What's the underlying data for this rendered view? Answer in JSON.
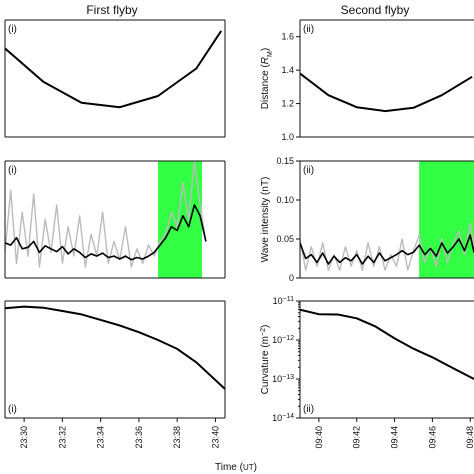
{
  "headers": {
    "left": "First flyby",
    "right": "Second flyby"
  },
  "chart_data": [
    {
      "id": "dist1",
      "type": "line",
      "panel_label": "(i)",
      "x": [
        23.29,
        23.31,
        23.33,
        23.35,
        23.37,
        23.39,
        23.403
      ],
      "series": [
        {
          "color": "#000000",
          "width": 2,
          "values": [
            1.53,
            1.33,
            1.205,
            1.178,
            1.245,
            1.41,
            1.635
          ]
        }
      ],
      "xlim": [
        23.29,
        23.405
      ],
      "ylim": [
        1.0,
        1.7
      ],
      "yticks": [],
      "xticks": []
    },
    {
      "id": "dist2",
      "type": "line",
      "panel_label": "(ii)",
      "ylabel_parts": [
        "Distance (",
        "R",
        "M",
        ")"
      ],
      "x": [
        9.39,
        9.405,
        9.42,
        9.435,
        9.45,
        9.465,
        9.481
      ],
      "series": [
        {
          "color": "#000000",
          "width": 2,
          "values": [
            1.38,
            1.25,
            1.178,
            1.155,
            1.175,
            1.25,
            1.36
          ]
        }
      ],
      "xlim": [
        9.39,
        9.482
      ],
      "ylim": [
        1.0,
        1.7
      ],
      "yticks": [
        1.0,
        1.2,
        1.4,
        1.6
      ],
      "ytick_labels": [
        "1.0",
        "1.2",
        "1.4",
        "1.6"
      ],
      "xticks": []
    },
    {
      "id": "wave1",
      "type": "line",
      "panel_label": "(i)",
      "shaded_region": {
        "from": 23.37,
        "to": 23.393,
        "color": "#33ff44"
      },
      "x": [
        23.29,
        23.293,
        23.296,
        23.299,
        23.302,
        23.305,
        23.308,
        23.311,
        23.314,
        23.317,
        23.32,
        23.323,
        23.326,
        23.329,
        23.332,
        23.335,
        23.338,
        23.341,
        23.344,
        23.347,
        23.35,
        23.353,
        23.356,
        23.359,
        23.362,
        23.365,
        23.368,
        23.371,
        23.374,
        23.377,
        23.38,
        23.383,
        23.386,
        23.389,
        23.392,
        23.395
      ],
      "series": [
        {
          "color": "#bbbbbb",
          "width": 1.4,
          "values": [
            0.035,
            0.12,
            0.02,
            0.09,
            0.03,
            0.115,
            0.015,
            0.08,
            0.035,
            0.1,
            0.02,
            0.07,
            0.03,
            0.085,
            0.015,
            0.06,
            0.03,
            0.09,
            0.02,
            0.05,
            0.025,
            0.07,
            0.015,
            0.04,
            0.02,
            0.045,
            0.03,
            0.05,
            0.06,
            0.09,
            0.07,
            0.13,
            0.08,
            0.16,
            0.1,
            0.05
          ]
        },
        {
          "color": "#000000",
          "width": 1.6,
          "values": [
            0.048,
            0.045,
            0.055,
            0.04,
            0.042,
            0.05,
            0.035,
            0.044,
            0.04,
            0.036,
            0.043,
            0.033,
            0.04,
            0.035,
            0.028,
            0.033,
            0.03,
            0.034,
            0.028,
            0.03,
            0.026,
            0.03,
            0.025,
            0.028,
            0.026,
            0.03,
            0.035,
            0.045,
            0.055,
            0.07,
            0.065,
            0.085,
            0.07,
            0.1,
            0.085,
            0.05
          ]
        }
      ],
      "xlim": [
        23.29,
        23.405
      ],
      "ylim": [
        0.0,
        0.16
      ],
      "yticks": [],
      "xticks": []
    },
    {
      "id": "wave2",
      "type": "line",
      "panel_label": "(ii)",
      "ylabel": "Wave intensity (nT)",
      "shaded_region": {
        "from": 9.453,
        "to": 9.482,
        "color": "#33ff44"
      },
      "x": [
        9.39,
        9.393,
        9.396,
        9.399,
        9.402,
        9.405,
        9.408,
        9.411,
        9.414,
        9.417,
        9.42,
        9.423,
        9.426,
        9.429,
        9.432,
        9.435,
        9.438,
        9.441,
        9.444,
        9.447,
        9.45,
        9.453,
        9.456,
        9.459,
        9.462,
        9.465,
        9.468,
        9.471,
        9.474,
        9.477,
        9.48,
        9.482
      ],
      "series": [
        {
          "color": "#bbbbbb",
          "width": 1.4,
          "values": [
            0.05,
            0.01,
            0.04,
            0.015,
            0.045,
            0.01,
            0.03,
            0.01,
            0.04,
            0.015,
            0.035,
            0.01,
            0.045,
            0.015,
            0.04,
            0.01,
            0.03,
            0.015,
            0.05,
            0.01,
            0.035,
            0.055,
            0.02,
            0.04,
            0.015,
            0.05,
            0.02,
            0.045,
            0.06,
            0.03,
            0.07,
            0.04
          ]
        },
        {
          "color": "#000000",
          "width": 1.6,
          "values": [
            0.045,
            0.025,
            0.03,
            0.02,
            0.032,
            0.018,
            0.028,
            0.02,
            0.026,
            0.022,
            0.03,
            0.018,
            0.028,
            0.02,
            0.032,
            0.022,
            0.026,
            0.03,
            0.035,
            0.03,
            0.033,
            0.042,
            0.03,
            0.038,
            0.028,
            0.045,
            0.032,
            0.04,
            0.05,
            0.035,
            0.055,
            0.033
          ]
        }
      ],
      "xlim": [
        9.39,
        9.482
      ],
      "ylim": [
        0.0,
        0.15
      ],
      "yticks": [
        0,
        0.05,
        0.1,
        0.15
      ],
      "ytick_labels": [
        "0",
        "0.05",
        "0.10",
        "0.15"
      ],
      "xticks": []
    },
    {
      "id": "curv1",
      "type": "line",
      "panel_label": "(i)",
      "xlabel_parts": [
        "Time (",
        "UT",
        ")"
      ],
      "x": [
        23.29,
        23.3,
        23.31,
        23.32,
        23.33,
        23.34,
        23.35,
        23.36,
        23.37,
        23.38,
        23.39,
        23.405
      ],
      "series": [
        {
          "color": "#000000",
          "width": 2,
          "values": [
            0.985,
            1.0,
            0.99,
            0.96,
            0.93,
            0.88,
            0.83,
            0.77,
            0.7,
            0.62,
            0.5,
            0.26
          ]
        }
      ],
      "xlim": [
        23.29,
        23.405
      ],
      "ylim": [
        0.0,
        1.05
      ],
      "yticks": [],
      "xticks": [
        23.3,
        23.32,
        23.34,
        23.36,
        23.38,
        23.4
      ],
      "xtick_labels": [
        "23:30",
        "23:32",
        "23:34",
        "23:36",
        "23:38",
        "23:40"
      ]
    },
    {
      "id": "curv2",
      "type": "line",
      "panel_label": "(ii)",
      "ylabel_parts": [
        "Curvature (m",
        "−2",
        ")"
      ],
      "yscale": "log",
      "x": [
        9.39,
        9.4,
        9.41,
        9.42,
        9.43,
        9.44,
        9.45,
        9.46,
        9.47,
        9.482
      ],
      "series": [
        {
          "color": "#000000",
          "width": 2,
          "values": [
            6e-12,
            4.6e-12,
            4.5e-12,
            3.6e-12,
            2.2e-12,
            1.1e-12,
            6e-13,
            3.6e-13,
            2e-13,
            1e-13
          ]
        }
      ],
      "xlim": [
        9.39,
        9.482
      ],
      "ylim": [
        1e-14,
        1e-11
      ],
      "yticks": [
        1e-14,
        1e-13,
        1e-12,
        1e-11
      ],
      "ytick_labels": [
        [
          "10",
          "−14"
        ],
        [
          "10",
          "−13"
        ],
        [
          "10",
          "−12"
        ],
        [
          "10",
          "−11"
        ]
      ],
      "xticks": [
        9.4,
        9.42,
        9.44,
        9.46,
        9.48
      ],
      "xtick_labels": [
        "09:40",
        "09:42",
        "09:44",
        "09:46",
        "09:48"
      ]
    }
  ]
}
